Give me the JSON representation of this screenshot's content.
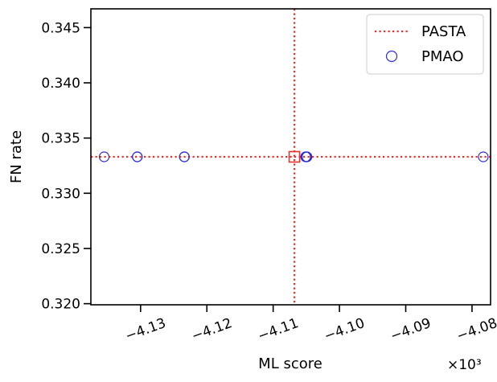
{
  "chart_data": {
    "type": "scatter",
    "xlabel": "ML score",
    "ylabel": "FN rate",
    "x_offset_label": "×10³",
    "xlim": [
      -4.1375,
      -4.0772
    ],
    "ylim": [
      0.3199,
      0.3467
    ],
    "x_ticks": [
      -4.13,
      -4.12,
      -4.11,
      -4.1,
      -4.09,
      -4.08
    ],
    "x_tick_labels": [
      "−4.13",
      "−4.12",
      "−4.11",
      "−4.10",
      "−4.09",
      "−4.08"
    ],
    "y_ticks": [
      0.32,
      0.325,
      0.33,
      0.335,
      0.34,
      0.345
    ],
    "y_tick_labels": [
      "0.320",
      "0.325",
      "0.330",
      "0.335",
      "0.340",
      "0.345"
    ],
    "grid": false,
    "legend_position": "top-right",
    "pasta": {
      "name": "PASTA",
      "x": -4.1068,
      "y": 0.3333,
      "color": "#e8302a",
      "marker": "square",
      "lines": "dotted crosshair"
    },
    "pmao": {
      "name": "PMAO",
      "color": "#2d2dd6",
      "marker": "open circle",
      "points": [
        {
          "x": -4.1355,
          "y": 0.3333
        },
        {
          "x": -4.1305,
          "y": 0.3333
        },
        {
          "x": -4.1305,
          "y": 0.3333
        },
        {
          "x": -4.1234,
          "y": 0.3333
        },
        {
          "x": -4.1234,
          "y": 0.3333
        },
        {
          "x": -4.1051,
          "y": 0.3333
        },
        {
          "x": -4.1049,
          "y": 0.3333
        },
        {
          "x": -4.105,
          "y": 0.3333
        },
        {
          "x": -4.0783,
          "y": 0.3333
        }
      ]
    }
  }
}
